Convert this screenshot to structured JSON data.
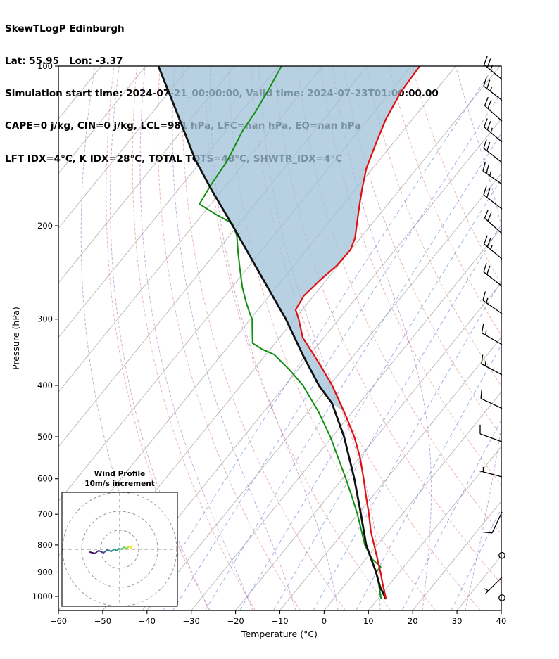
{
  "header": {
    "line1": "SkewTLogP Edinburgh",
    "line2": "Lat: 55.95   Lon: -3.37",
    "line3": "Simulation start time: 2024-07-21_00:00:00, Valid time: 2024-07-23T01:00:00.00",
    "line4": "CAPE=0 j/kg, CIN=0 j/kg, LCL=981 hPa, LFC=nan hPa, EQ=nan hPa",
    "line5": "LFT IDX=4°C, K IDX=28°C, TOTAL TOTS=48°C, SHWTR_IDX=4°C"
  },
  "chart_data": {
    "type": "line",
    "title": "SkewTLogP Edinburgh",
    "x_axis": {
      "label": "Temperature (°C)",
      "ticks": [
        -60,
        -50,
        -40,
        -30,
        -20,
        -10,
        0,
        10,
        20,
        30,
        40
      ],
      "range_at_bottom_c": [
        -60,
        40
      ]
    },
    "y_axis": {
      "label": "Pressure (hPa)",
      "ticks": [
        100,
        200,
        300,
        400,
        500,
        600,
        700,
        800,
        900,
        1000
      ],
      "scale": "log",
      "range_hpa": [
        100,
        1063
      ],
      "inverted": true
    },
    "series": [
      {
        "name": "temperature",
        "color": "#e01010",
        "style": "solid",
        "width": 2.2,
        "points_p_t": [
          [
            100,
            -78.1
          ],
          [
            112,
            -77.6
          ],
          [
            126,
            -76.0
          ],
          [
            140,
            -73.8
          ],
          [
            156,
            -71.4
          ],
          [
            170,
            -68.7
          ],
          [
            182,
            -66.4
          ],
          [
            200,
            -63.1
          ],
          [
            211,
            -61.2
          ],
          [
            222,
            -60.1
          ],
          [
            238,
            -60.3
          ],
          [
            253,
            -61.4
          ],
          [
            271,
            -62.2
          ],
          [
            288,
            -61.5
          ],
          [
            300,
            -59.1
          ],
          [
            325,
            -54.8
          ],
          [
            350,
            -49.2
          ],
          [
            373,
            -44.5
          ],
          [
            400,
            -39.4
          ],
          [
            449,
            -31.8
          ],
          [
            500,
            -25.0
          ],
          [
            546,
            -20.0
          ],
          [
            600,
            -15.2
          ],
          [
            648,
            -11.4
          ],
          [
            700,
            -7.5
          ],
          [
            753,
            -4.0
          ],
          [
            800,
            -0.7
          ],
          [
            850,
            2.6
          ],
          [
            900,
            5.7
          ],
          [
            950,
            8.5
          ],
          [
            1012,
            11.9
          ]
        ]
      },
      {
        "name": "dewpoint",
        "color": "#109010",
        "style": "solid",
        "width": 2.0,
        "points_p_t": [
          [
            100,
            -109.3
          ],
          [
            110,
            -108.0
          ],
          [
            122,
            -106.8
          ],
          [
            132,
            -106.3
          ],
          [
            151,
            -104.2
          ],
          [
            167,
            -103.5
          ],
          [
            182,
            -102.6
          ],
          [
            190,
            -97.2
          ],
          [
            198,
            -91.6
          ],
          [
            209,
            -88.3
          ],
          [
            225,
            -84.9
          ],
          [
            243,
            -81.2
          ],
          [
            262,
            -77.5
          ],
          [
            279,
            -74.0
          ],
          [
            295,
            -70.7
          ],
          [
            300,
            -69.6
          ],
          [
            315,
            -67.5
          ],
          [
            333,
            -65.1
          ],
          [
            342,
            -61.8
          ],
          [
            350,
            -58.1
          ],
          [
            375,
            -51.6
          ],
          [
            400,
            -46.0
          ],
          [
            449,
            -37.6
          ],
          [
            500,
            -30.4
          ],
          [
            546,
            -25.0
          ],
          [
            600,
            -19.2
          ],
          [
            648,
            -14.6
          ],
          [
            700,
            -10.1
          ],
          [
            746,
            -6.6
          ],
          [
            800,
            -2.8
          ],
          [
            850,
            1.4
          ],
          [
            880,
            4.8
          ],
          [
            900,
            4.7
          ],
          [
            950,
            7.6
          ],
          [
            1012,
            10.8
          ]
        ]
      },
      {
        "name": "parcel",
        "color": "#111111",
        "style": "solid",
        "width": 2.8,
        "points_p_t": [
          [
            100,
            -137.1
          ],
          [
            122,
            -124.6
          ],
          [
            150,
            -111.7
          ],
          [
            171,
            -102.5
          ],
          [
            200,
            -91.1
          ],
          [
            250,
            -75.1
          ],
          [
            300,
            -62.0
          ],
          [
            350,
            -51.7
          ],
          [
            400,
            -42.4
          ],
          [
            432,
            -36.2
          ],
          [
            500,
            -27.3
          ],
          [
            600,
            -17.3
          ],
          [
            700,
            -9.3
          ],
          [
            800,
            -2.5
          ],
          [
            850,
            1.2
          ],
          [
            900,
            4.7
          ],
          [
            961,
            8.4
          ],
          [
            1012,
            11.9
          ]
        ]
      }
    ],
    "shaded_region": {
      "between": [
        "parcel",
        "temperature"
      ],
      "p_range_hpa": [
        100,
        450
      ],
      "color": "#9fc2d8",
      "opacity": 0.75
    },
    "background_lines": {
      "isotherms_c": {
        "from": -160,
        "to": 40,
        "step": 10,
        "color": "#b5b5b5",
        "style": "solid"
      },
      "dry_adiabats_theta_c": {
        "from": -30,
        "to": 100,
        "step": 10,
        "color": "#e08585",
        "style": "dashed"
      },
      "moist_adiabats_thetaw_c": {
        "from": -40,
        "to": 40,
        "step": 10,
        "color": "#9b6bbf",
        "style": "dashed"
      },
      "mixing_ratio_g_kg": {
        "values": [
          0.1,
          0.2,
          0.4,
          0.8,
          1.5,
          3,
          6,
          12,
          24,
          48
        ],
        "color": "#4a5fd0",
        "style": "dashed"
      }
    },
    "wind_barbs": {
      "units": "kt",
      "levels": [
        {
          "p": 106,
          "speed": 25,
          "dir": 310
        },
        {
          "p": 116,
          "speed": 25,
          "dir": 308
        },
        {
          "p": 127,
          "speed": 20,
          "dir": 312
        },
        {
          "p": 139,
          "speed": 25,
          "dir": 310
        },
        {
          "p": 152,
          "speed": 20,
          "dir": 308
        },
        {
          "p": 167,
          "speed": 25,
          "dir": 305
        },
        {
          "p": 186,
          "speed": 20,
          "dir": 308
        },
        {
          "p": 207,
          "speed": 20,
          "dir": 312
        },
        {
          "p": 231,
          "speed": 25,
          "dir": 310
        },
        {
          "p": 260,
          "speed": 20,
          "dir": 308
        },
        {
          "p": 293,
          "speed": 15,
          "dir": 305
        },
        {
          "p": 335,
          "speed": 15,
          "dir": 300
        },
        {
          "p": 382,
          "speed": 15,
          "dir": 298
        },
        {
          "p": 442,
          "speed": 10,
          "dir": 295
        },
        {
          "p": 511,
          "speed": 10,
          "dir": 290
        },
        {
          "p": 595,
          "speed": 5,
          "dir": 285
        },
        {
          "p": 693,
          "speed": 10,
          "dir": 205
        },
        {
          "p": 837,
          "speed": 2,
          "dir": 0
        },
        {
          "p": 920,
          "speed": 5,
          "dir": 225
        },
        {
          "p": 1006,
          "speed": 2,
          "dir": 0
        }
      ]
    },
    "hodograph": {
      "title": "Wind Profile",
      "subtitle": "10m/s increment",
      "rings_m_s": [
        10,
        20,
        30
      ],
      "trace_u_v_color": [
        [
          -15.6,
          -1.5,
          "#440154"
        ],
        [
          -13.0,
          -2.2,
          "#440154"
        ],
        [
          -11.1,
          -0.7,
          "#46327e"
        ],
        [
          -8.5,
          -1.9,
          "#453781"
        ],
        [
          -6.7,
          -0.4,
          "#365c8d"
        ],
        [
          -4.4,
          -1.1,
          "#2e6e8e"
        ],
        [
          -3.0,
          0.0,
          "#277f8e"
        ],
        [
          -1.5,
          -0.7,
          "#21918c"
        ],
        [
          -0.4,
          0.4,
          "#1fa187"
        ],
        [
          1.1,
          0.0,
          "#35b779"
        ],
        [
          2.2,
          1.1,
          "#4ac16d"
        ],
        [
          3.7,
          0.4,
          "#7ad151"
        ],
        [
          4.8,
          1.5,
          "#a0da39"
        ],
        [
          5.9,
          0.7,
          "#d2e21b"
        ],
        [
          6.7,
          1.9,
          "#fde725"
        ]
      ]
    }
  }
}
